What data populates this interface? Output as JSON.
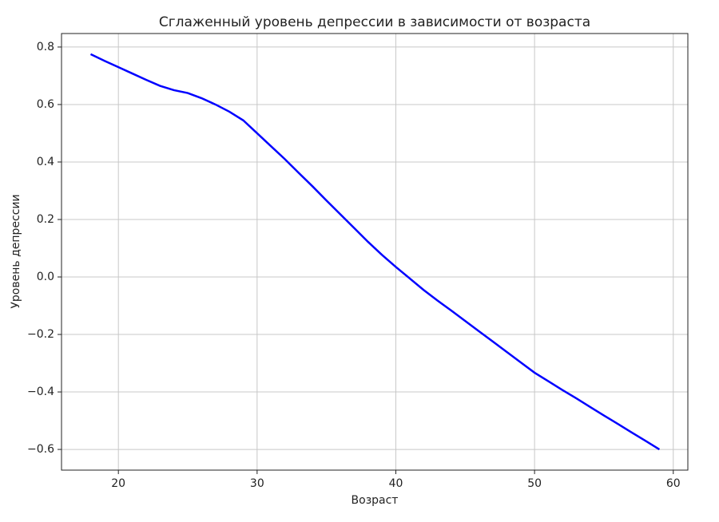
{
  "chart_data": {
    "type": "line",
    "title": "Сглаженный уровень депрессии в зависимости от возраста",
    "xlabel": "Возраст",
    "ylabel": "Уровень депрессии",
    "x": [
      18,
      19,
      20,
      21,
      22,
      23,
      24,
      25,
      26,
      27,
      28,
      29,
      30,
      31,
      32,
      33,
      34,
      35,
      36,
      37,
      38,
      39,
      40,
      41,
      42,
      43,
      44,
      45,
      46,
      47,
      48,
      49,
      50,
      51,
      52,
      53,
      54,
      55,
      56,
      57,
      58,
      59
    ],
    "series": [
      {
        "color": "#0000ff",
        "values": [
          0.775,
          0.752,
          0.73,
          0.708,
          0.686,
          0.665,
          0.65,
          0.64,
          0.622,
          0.6,
          0.575,
          0.545,
          0.5,
          0.455,
          0.41,
          0.362,
          0.315,
          0.266,
          0.218,
          0.17,
          0.122,
          0.077,
          0.035,
          -0.005,
          -0.045,
          -0.082,
          -0.117,
          -0.153,
          -0.189,
          -0.225,
          -0.261,
          -0.297,
          -0.333,
          -0.363,
          -0.393,
          -0.422,
          -0.452,
          -0.482,
          -0.511,
          -0.541,
          -0.57,
          -0.6
        ]
      }
    ],
    "xlim": [
      15.9,
      61.05
    ],
    "xticks": [
      20,
      30,
      40,
      50,
      60
    ],
    "ylim": [
      -0.672,
      0.847
    ],
    "yticks": [
      {
        "value": -0.6,
        "label": "−0.6"
      },
      {
        "value": -0.4,
        "label": "−0.4"
      },
      {
        "value": -0.2,
        "label": "−0.2"
      },
      {
        "value": 0,
        "label": "0.0"
      },
      0.2,
      0.4,
      0.6,
      0.8
    ],
    "grid": true
  }
}
